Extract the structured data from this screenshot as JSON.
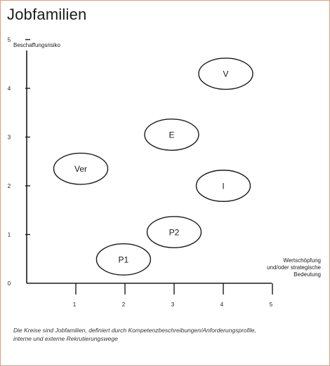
{
  "page": {
    "title": "Jobfamilien",
    "caption_lines": [
      "Die Kreise sind Jobfamilien, definiert durch Kompetenzbeschreibungen/Anforderungsprofile,",
      "interne und externe Rekrutierungswege"
    ]
  },
  "chart_data": {
    "type": "scatter",
    "title": "Jobfamilien",
    "ylabel": "Beschaffungsrisiko",
    "xlabel_lines": [
      "Wertschöpfung",
      "und/oder strategische",
      "Bedeutung"
    ],
    "xlim": [
      0,
      5
    ],
    "ylim": [
      0,
      5
    ],
    "x_ticks": [
      1,
      2,
      3,
      4,
      5
    ],
    "y_ticks": [
      0,
      1,
      2,
      3,
      4,
      5
    ],
    "grid": false,
    "points": [
      {
        "label": "V",
        "x": 4.05,
        "y": 4.3,
        "rx": 0.55,
        "ry": 0.32
      },
      {
        "label": "E",
        "x": 2.95,
        "y": 3.05,
        "rx": 0.55,
        "ry": 0.32
      },
      {
        "label": "Ver",
        "x": 1.1,
        "y": 2.35,
        "rx": 0.55,
        "ry": 0.32
      },
      {
        "label": "I",
        "x": 4.0,
        "y": 2.0,
        "rx": 0.55,
        "ry": 0.32
      },
      {
        "label": "P2",
        "x": 3.0,
        "y": 1.05,
        "rx": 0.55,
        "ry": 0.32
      },
      {
        "label": "P1",
        "x": 1.97,
        "y": 0.49,
        "rx": 0.55,
        "ry": 0.32
      }
    ]
  },
  "colors": {
    "axis": "#1a1a1a",
    "frame": "#d7a080"
  }
}
